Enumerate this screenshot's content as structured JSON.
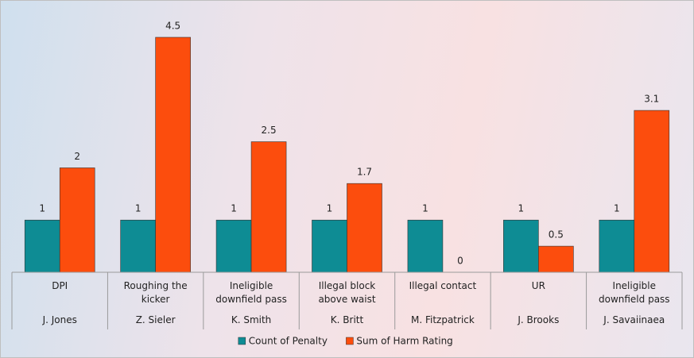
{
  "chart_data": {
    "type": "bar",
    "categories": [
      {
        "label": "DPI",
        "group": "J. Jones"
      },
      {
        "label": "Roughing the kicker",
        "group": "Z. Sieler"
      },
      {
        "label": "Ineligible downfield pass",
        "group": "K. Smith"
      },
      {
        "label": "Illegal block above waist",
        "group": "K. Britt"
      },
      {
        "label": "Illegal contact",
        "group": "M. Fitzpatrick"
      },
      {
        "label": "UR",
        "group": "J. Brooks"
      },
      {
        "label": "Ineligible downfield pass",
        "group": "J. Savaiinaea"
      }
    ],
    "series": [
      {
        "name": "Count of Penalty",
        "color": "#0e8c94",
        "values": [
          1,
          1,
          1,
          1,
          1,
          1,
          1
        ]
      },
      {
        "name": "Sum of Harm Rating",
        "color": "#fc4d0d",
        "values": [
          2,
          4.5,
          2.5,
          1.7,
          0,
          0.5,
          3.1
        ]
      }
    ],
    "data_labels": true,
    "legend": "bottom"
  }
}
